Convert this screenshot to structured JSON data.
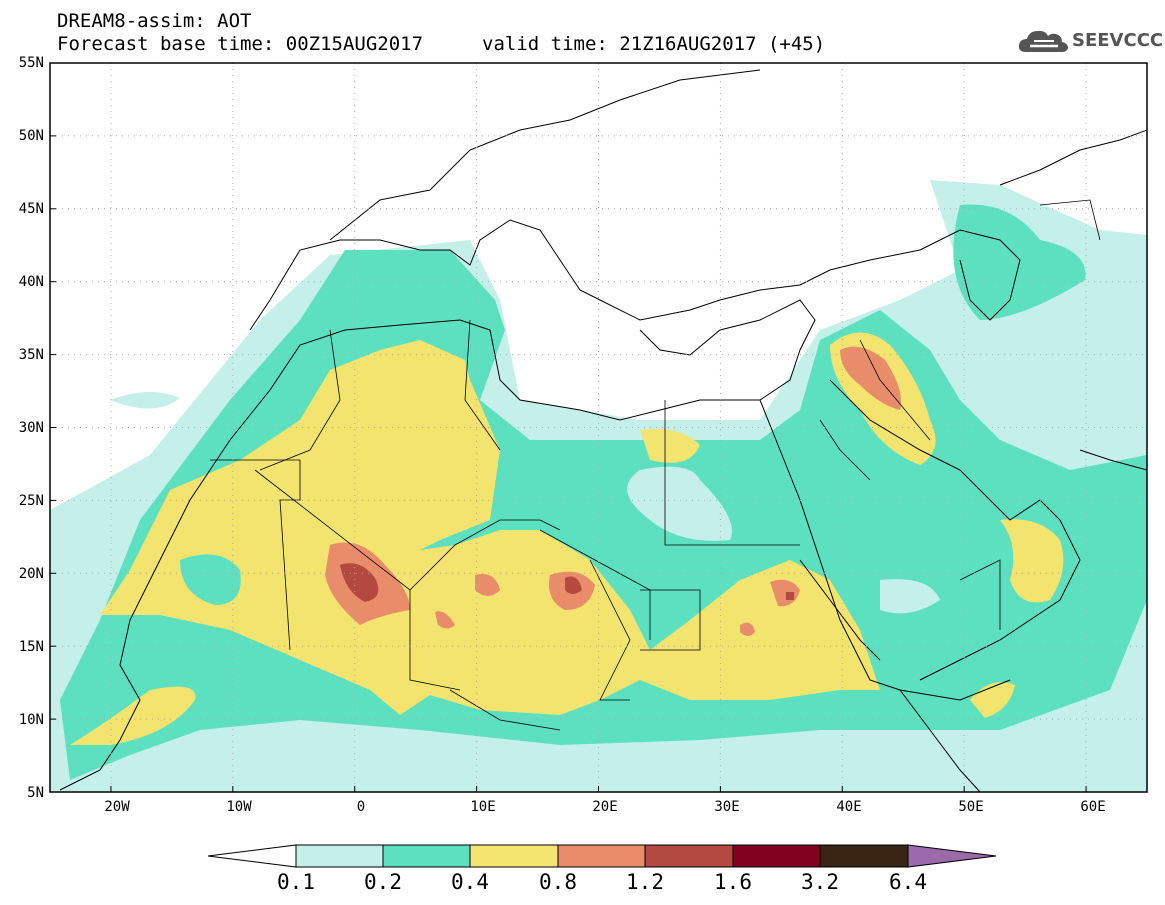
{
  "header": {
    "line1": "DREAM8-assim: AOT",
    "line2": "Forecast base time: 00Z15AUG2017",
    "valid": "valid time: 21Z16AUG2017 (+45)",
    "logo_text": "SEEVCCC"
  },
  "map": {
    "lat_labels": [
      "55N",
      "50N",
      "45N",
      "40N",
      "35N",
      "30N",
      "25N",
      "20N",
      "15N",
      "10N",
      "5N"
    ],
    "lon_labels": [
      "20W",
      "10W",
      "0",
      "10E",
      "20E",
      "30E",
      "40E",
      "50E",
      "60E"
    ],
    "lon_range": [
      -25,
      65
    ],
    "lat_range": [
      5,
      55
    ]
  },
  "colorbar": {
    "labels": [
      "0.1",
      "0.2",
      "0.4",
      "0.8",
      "1.2",
      "1.6",
      "3.2",
      "6.4"
    ],
    "colors": [
      "#ffffff",
      "#c5efe9",
      "#5de0bf",
      "#f3e46f",
      "#e98c69",
      "#b4493f",
      "#800020",
      "#3a2514",
      "#9a6aaa"
    ]
  }
}
